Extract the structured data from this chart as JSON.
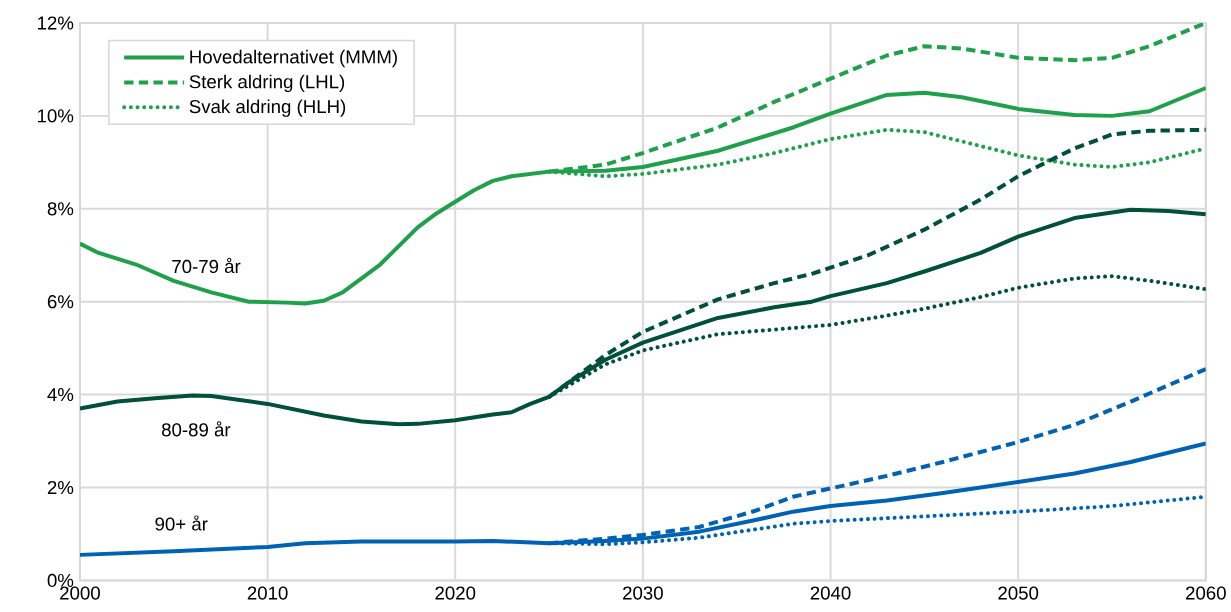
{
  "chart_data": {
    "type": "line",
    "xlim": [
      2000,
      2060
    ],
    "xticks": [
      2000,
      2010,
      2020,
      2030,
      2040,
      2050,
      2060
    ],
    "ylim": [
      0,
      12
    ],
    "yticks": [
      {
        "value": 0,
        "label": "0%"
      },
      {
        "value": 2,
        "label": "2%"
      },
      {
        "value": 4,
        "label": "4%"
      },
      {
        "value": 6,
        "label": "6%"
      },
      {
        "value": 8,
        "label": "8%"
      },
      {
        "value": 10,
        "label": "10%"
      },
      {
        "value": 12,
        "label": "12%"
      }
    ],
    "grid": true,
    "legend": "top left",
    "annotations": [
      "70-79 år",
      "80-89 år",
      "90+ år"
    ],
    "series": [
      {
        "name": "Hovedalternativet (MMM)",
        "color": "#1fa04a",
        "line_style": "solid",
        "x": [
          2000,
          2001,
          2003,
          2005,
          2007,
          2009,
          2011,
          2012,
          2013,
          2014,
          2016,
          2017,
          2018,
          2019,
          2020,
          2021,
          2022,
          2023,
          2025,
          2028,
          2030,
          2034,
          2036,
          2038,
          2040,
          2043,
          2045,
          2047,
          2050,
          2053,
          2055,
          2057,
          2060
        ],
        "values": [
          7.25,
          7.05,
          6.8,
          6.45,
          6.2,
          6.0,
          5.98,
          5.96,
          6.02,
          6.2,
          6.8,
          7.2,
          7.6,
          7.9,
          8.15,
          8.4,
          8.6,
          8.7,
          8.8,
          8.82,
          8.9,
          9.25,
          9.5,
          9.75,
          10.05,
          10.45,
          10.5,
          10.4,
          10.15,
          10.02,
          10.0,
          10.1,
          10.6
        ]
      },
      {
        "name": "Sterk aldring (LHL)",
        "color": "#1fa04a",
        "line_style": "dashed",
        "x": [
          2025,
          2028,
          2030,
          2034,
          2037,
          2040,
          2043,
          2045,
          2047,
          2050,
          2053,
          2055,
          2057,
          2060
        ],
        "values": [
          8.8,
          8.95,
          9.2,
          9.75,
          10.3,
          10.8,
          11.3,
          11.5,
          11.45,
          11.25,
          11.2,
          11.25,
          11.5,
          12.0
        ]
      },
      {
        "name": "Svak aldring (HLH)",
        "color": "#1fa04a",
        "line_style": "dotted",
        "x": [
          2025,
          2028,
          2030,
          2034,
          2037,
          2040,
          2043,
          2045,
          2047,
          2050,
          2053,
          2055,
          2057,
          2060
        ],
        "values": [
          8.8,
          8.7,
          8.75,
          8.95,
          9.2,
          9.5,
          9.7,
          9.65,
          9.45,
          9.15,
          8.95,
          8.9,
          9.0,
          9.3
        ]
      },
      {
        "color": "#00503a",
        "line_style": "solid",
        "x": [
          2000,
          2002,
          2004,
          2006,
          2007,
          2010,
          2013,
          2015,
          2017,
          2018,
          2020,
          2022,
          2023,
          2024,
          2025,
          2026,
          2028,
          2030,
          2034,
          2037,
          2039,
          2040,
          2043,
          2045,
          2048,
          2050,
          2053,
          2056,
          2058,
          2060
        ],
        "values": [
          3.7,
          3.85,
          3.92,
          3.98,
          3.97,
          3.8,
          3.55,
          3.42,
          3.36,
          3.37,
          3.45,
          3.57,
          3.62,
          3.8,
          3.95,
          4.25,
          4.75,
          5.12,
          5.65,
          5.88,
          6.0,
          6.12,
          6.4,
          6.65,
          7.05,
          7.4,
          7.8,
          7.98,
          7.95,
          7.88
        ]
      },
      {
        "color": "#00503a",
        "line_style": "dashed",
        "x": [
          2025,
          2028,
          2030,
          2034,
          2037,
          2039,
          2042,
          2045,
          2048,
          2050,
          2053,
          2055,
          2057,
          2060
        ],
        "values": [
          3.95,
          4.85,
          5.35,
          6.05,
          6.4,
          6.6,
          7.0,
          7.55,
          8.2,
          8.7,
          9.3,
          9.6,
          9.68,
          9.7
        ]
      },
      {
        "color": "#00503a",
        "line_style": "dotted",
        "x": [
          2025,
          2028,
          2030,
          2034,
          2037,
          2040,
          2043,
          2045,
          2048,
          2050,
          2053,
          2055,
          2057,
          2060
        ],
        "values": [
          3.95,
          4.65,
          4.95,
          5.3,
          5.4,
          5.5,
          5.7,
          5.85,
          6.1,
          6.3,
          6.5,
          6.55,
          6.45,
          6.27
        ]
      },
      {
        "color": "#0062b4",
        "line_style": "solid",
        "x": [
          2000,
          2005,
          2010,
          2012,
          2015,
          2020,
          2022,
          2025,
          2028,
          2030,
          2033,
          2036,
          2038,
          2040,
          2043,
          2046,
          2050,
          2053,
          2056,
          2060
        ],
        "values": [
          0.55,
          0.63,
          0.72,
          0.8,
          0.84,
          0.84,
          0.85,
          0.8,
          0.85,
          0.9,
          1.05,
          1.3,
          1.48,
          1.6,
          1.72,
          1.88,
          2.12,
          2.3,
          2.55,
          2.95
        ]
      },
      {
        "color": "#0062b4",
        "line_style": "dashed",
        "x": [
          2025,
          2028,
          2030,
          2033,
          2036,
          2038,
          2040,
          2043,
          2046,
          2050,
          2053,
          2056,
          2060
        ],
        "values": [
          0.8,
          0.9,
          0.98,
          1.15,
          1.5,
          1.8,
          1.98,
          2.25,
          2.55,
          2.98,
          3.35,
          3.85,
          4.55
        ]
      },
      {
        "color": "#0062b4",
        "line_style": "dotted",
        "x": [
          2025,
          2028,
          2030,
          2033,
          2036,
          2038,
          2040,
          2045,
          2050,
          2055,
          2060
        ],
        "values": [
          0.8,
          0.78,
          0.82,
          0.92,
          1.1,
          1.22,
          1.28,
          1.38,
          1.48,
          1.6,
          1.8
        ]
      }
    ]
  }
}
